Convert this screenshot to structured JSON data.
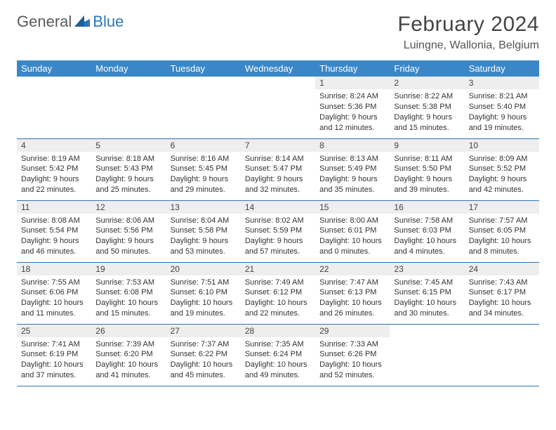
{
  "brand": {
    "part1": "General",
    "part2": "Blue"
  },
  "title": {
    "month": "February 2024",
    "location": "Luingne, Wallonia, Belgium"
  },
  "colors": {
    "headerBg": "#3a87c8",
    "rowRule": "#2a76b8",
    "dayBarBg": "#eeeeee"
  },
  "weekdays": [
    "Sunday",
    "Monday",
    "Tuesday",
    "Wednesday",
    "Thursday",
    "Friday",
    "Saturday"
  ],
  "weeks": [
    [
      null,
      null,
      null,
      null,
      {
        "n": "1",
        "sr": "Sunrise: 8:24 AM",
        "ss": "Sunset: 5:36 PM",
        "dl": "Daylight: 9 hours and 12 minutes."
      },
      {
        "n": "2",
        "sr": "Sunrise: 8:22 AM",
        "ss": "Sunset: 5:38 PM",
        "dl": "Daylight: 9 hours and 15 minutes."
      },
      {
        "n": "3",
        "sr": "Sunrise: 8:21 AM",
        "ss": "Sunset: 5:40 PM",
        "dl": "Daylight: 9 hours and 19 minutes."
      }
    ],
    [
      {
        "n": "4",
        "sr": "Sunrise: 8:19 AM",
        "ss": "Sunset: 5:42 PM",
        "dl": "Daylight: 9 hours and 22 minutes."
      },
      {
        "n": "5",
        "sr": "Sunrise: 8:18 AM",
        "ss": "Sunset: 5:43 PM",
        "dl": "Daylight: 9 hours and 25 minutes."
      },
      {
        "n": "6",
        "sr": "Sunrise: 8:16 AM",
        "ss": "Sunset: 5:45 PM",
        "dl": "Daylight: 9 hours and 29 minutes."
      },
      {
        "n": "7",
        "sr": "Sunrise: 8:14 AM",
        "ss": "Sunset: 5:47 PM",
        "dl": "Daylight: 9 hours and 32 minutes."
      },
      {
        "n": "8",
        "sr": "Sunrise: 8:13 AM",
        "ss": "Sunset: 5:49 PM",
        "dl": "Daylight: 9 hours and 35 minutes."
      },
      {
        "n": "9",
        "sr": "Sunrise: 8:11 AM",
        "ss": "Sunset: 5:50 PM",
        "dl": "Daylight: 9 hours and 39 minutes."
      },
      {
        "n": "10",
        "sr": "Sunrise: 8:09 AM",
        "ss": "Sunset: 5:52 PM",
        "dl": "Daylight: 9 hours and 42 minutes."
      }
    ],
    [
      {
        "n": "11",
        "sr": "Sunrise: 8:08 AM",
        "ss": "Sunset: 5:54 PM",
        "dl": "Daylight: 9 hours and 46 minutes."
      },
      {
        "n": "12",
        "sr": "Sunrise: 8:06 AM",
        "ss": "Sunset: 5:56 PM",
        "dl": "Daylight: 9 hours and 50 minutes."
      },
      {
        "n": "13",
        "sr": "Sunrise: 8:04 AM",
        "ss": "Sunset: 5:58 PM",
        "dl": "Daylight: 9 hours and 53 minutes."
      },
      {
        "n": "14",
        "sr": "Sunrise: 8:02 AM",
        "ss": "Sunset: 5:59 PM",
        "dl": "Daylight: 9 hours and 57 minutes."
      },
      {
        "n": "15",
        "sr": "Sunrise: 8:00 AM",
        "ss": "Sunset: 6:01 PM",
        "dl": "Daylight: 10 hours and 0 minutes."
      },
      {
        "n": "16",
        "sr": "Sunrise: 7:58 AM",
        "ss": "Sunset: 6:03 PM",
        "dl": "Daylight: 10 hours and 4 minutes."
      },
      {
        "n": "17",
        "sr": "Sunrise: 7:57 AM",
        "ss": "Sunset: 6:05 PM",
        "dl": "Daylight: 10 hours and 8 minutes."
      }
    ],
    [
      {
        "n": "18",
        "sr": "Sunrise: 7:55 AM",
        "ss": "Sunset: 6:06 PM",
        "dl": "Daylight: 10 hours and 11 minutes."
      },
      {
        "n": "19",
        "sr": "Sunrise: 7:53 AM",
        "ss": "Sunset: 6:08 PM",
        "dl": "Daylight: 10 hours and 15 minutes."
      },
      {
        "n": "20",
        "sr": "Sunrise: 7:51 AM",
        "ss": "Sunset: 6:10 PM",
        "dl": "Daylight: 10 hours and 19 minutes."
      },
      {
        "n": "21",
        "sr": "Sunrise: 7:49 AM",
        "ss": "Sunset: 6:12 PM",
        "dl": "Daylight: 10 hours and 22 minutes."
      },
      {
        "n": "22",
        "sr": "Sunrise: 7:47 AM",
        "ss": "Sunset: 6:13 PM",
        "dl": "Daylight: 10 hours and 26 minutes."
      },
      {
        "n": "23",
        "sr": "Sunrise: 7:45 AM",
        "ss": "Sunset: 6:15 PM",
        "dl": "Daylight: 10 hours and 30 minutes."
      },
      {
        "n": "24",
        "sr": "Sunrise: 7:43 AM",
        "ss": "Sunset: 6:17 PM",
        "dl": "Daylight: 10 hours and 34 minutes."
      }
    ],
    [
      {
        "n": "25",
        "sr": "Sunrise: 7:41 AM",
        "ss": "Sunset: 6:19 PM",
        "dl": "Daylight: 10 hours and 37 minutes."
      },
      {
        "n": "26",
        "sr": "Sunrise: 7:39 AM",
        "ss": "Sunset: 6:20 PM",
        "dl": "Daylight: 10 hours and 41 minutes."
      },
      {
        "n": "27",
        "sr": "Sunrise: 7:37 AM",
        "ss": "Sunset: 6:22 PM",
        "dl": "Daylight: 10 hours and 45 minutes."
      },
      {
        "n": "28",
        "sr": "Sunrise: 7:35 AM",
        "ss": "Sunset: 6:24 PM",
        "dl": "Daylight: 10 hours and 49 minutes."
      },
      {
        "n": "29",
        "sr": "Sunrise: 7:33 AM",
        "ss": "Sunset: 6:26 PM",
        "dl": "Daylight: 10 hours and 52 minutes."
      },
      null,
      null
    ]
  ]
}
